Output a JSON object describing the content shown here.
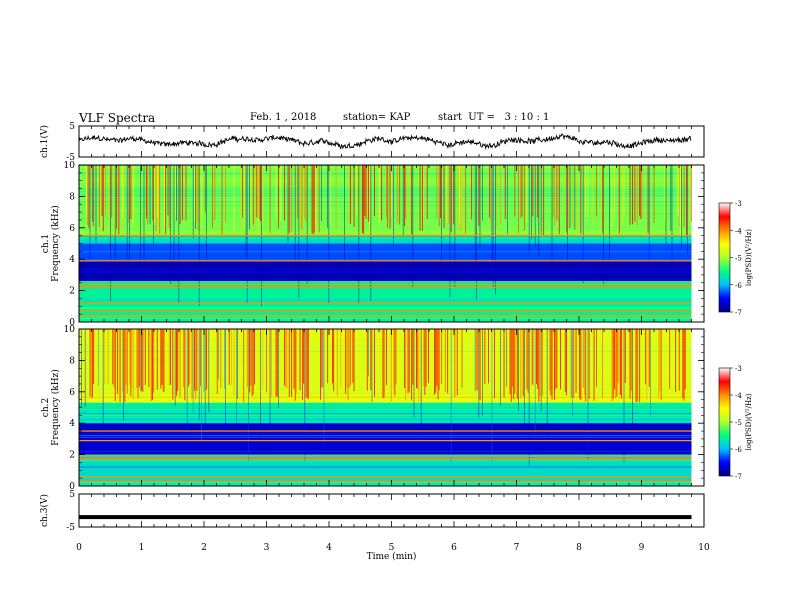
{
  "header": {
    "title": "VLF Spectra",
    "date": "Feb. 1 , 2018",
    "station": "station= KAP",
    "start": "start  UT =   3 : 10 : 1"
  },
  "colorbar": {
    "label": "log(PSD)(V²/Hz)",
    "ticks": [
      "-3",
      "-4",
      "-5",
      "-6",
      "-7"
    ],
    "range": [
      -7,
      -3
    ],
    "colors": [
      "#000080",
      "#0000ff",
      "#00bfff",
      "#00ff7f",
      "#adff2f",
      "#ffff00",
      "#ff8c00",
      "#ff0000",
      "#ffffff"
    ]
  },
  "chart_data": [
    {
      "type": "line",
      "name": "waveform-ch1",
      "ylabel": "ch.1(V)",
      "ylim": [
        -5,
        5
      ],
      "yticks": [
        "5",
        "-5"
      ],
      "xlim": [
        0,
        10
      ],
      "xlabel": "",
      "series_style": "noisy waveform, amplitude about ±2 V, centered near 0",
      "x_end": 9.8
    },
    {
      "type": "heatmap",
      "name": "spectrogram-ch1",
      "ylabel": "ch.1\nFrequency (kHz)",
      "ylim": [
        0,
        10
      ],
      "yticks": [
        "0",
        "2",
        "4",
        "6",
        "8",
        "10"
      ],
      "xlim": [
        0,
        10
      ],
      "x_end": 9.8,
      "value_range": [
        -7,
        -3
      ],
      "bands": [
        {
          "from": 10,
          "to": 5.5,
          "level": -4.9,
          "label": "broadband green/yellow with red impulses"
        },
        {
          "from": 5.5,
          "to": 5.0,
          "level": -5.6
        },
        {
          "from": 5.0,
          "to": 3.9,
          "level": -6.2
        },
        {
          "from": 3.9,
          "to": 2.6,
          "level": -6.7
        },
        {
          "from": 2.6,
          "to": 0,
          "level": -5.4
        }
      ],
      "lines_khz": [
        5.5,
        3.9,
        2.4,
        2.2,
        1.2,
        0.7,
        0.4
      ]
    },
    {
      "type": "heatmap",
      "name": "spectrogram-ch2",
      "ylabel": "ch.2\nFrequency (kHz)",
      "ylim": [
        0,
        10
      ],
      "yticks": [
        "0",
        "2",
        "4",
        "6",
        "8",
        "10"
      ],
      "xlim": [
        0,
        10
      ],
      "x_end": 9.8,
      "value_range": [
        -7,
        -3
      ],
      "bands": [
        {
          "from": 10,
          "to": 5.3,
          "level": -4.4,
          "label": "broadband yellow/orange with red impulses"
        },
        {
          "from": 5.3,
          "to": 4.0,
          "level": -5.5
        },
        {
          "from": 4.0,
          "to": 2.0,
          "level": -6.6
        },
        {
          "from": 2.0,
          "to": 0,
          "level": -5.6
        }
      ],
      "lines_khz": [
        3.5,
        2.9,
        1.9,
        1.7,
        0.6,
        0.3
      ]
    },
    {
      "type": "line",
      "name": "waveform-ch3",
      "ylabel": "ch.3(V)",
      "ylim": [
        -5,
        5
      ],
      "yticks": [
        "5",
        "-5"
      ],
      "xlim": [
        0,
        10
      ],
      "xlabel": "Time (min)",
      "xticks": [
        "0",
        "1",
        "2",
        "3",
        "4",
        "5",
        "6",
        "7",
        "8",
        "9",
        "10"
      ],
      "constant_value": -2.0,
      "x_end": 9.8
    }
  ]
}
